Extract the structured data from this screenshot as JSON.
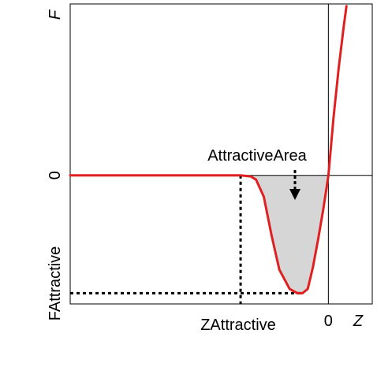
{
  "chart_data": {
    "type": "line",
    "title": "",
    "xlabel": "Z",
    "ylabel": "F",
    "x_ticks": [
      {
        "value": 0,
        "label": "0"
      }
    ],
    "y_ticks": [
      {
        "value": 0,
        "label": "0"
      }
    ],
    "xlim": [
      -1.0,
      0.17
    ],
    "ylim": [
      -0.6,
      0.8
    ],
    "grid": false,
    "reference_lines": {
      "x": 0,
      "y": 0
    },
    "series": [
      {
        "color": "#e02020",
        "x": [
          -1.0,
          -0.8,
          -0.6,
          -0.45,
          -0.34,
          -0.3,
          -0.28,
          -0.25,
          -0.22,
          -0.19,
          -0.15,
          -0.12,
          -0.1,
          -0.08,
          -0.06,
          -0.04,
          -0.02,
          0.0,
          0.02,
          0.04,
          0.06,
          0.07
        ],
        "y": [
          0.0,
          0.0,
          0.0,
          0.0,
          0.0,
          -0.005,
          -0.02,
          -0.1,
          -0.28,
          -0.44,
          -0.53,
          -0.55,
          -0.55,
          -0.53,
          -0.43,
          -0.3,
          -0.16,
          0.0,
          0.27,
          0.5,
          0.7,
          0.79
        ]
      }
    ],
    "attractive_point": {
      "z": -0.34,
      "f": -0.55
    },
    "annotations": {
      "area_label": "AttractiveArea",
      "z_attractive_label": "ZAttractive",
      "f_attractive_label": "FAttractive"
    },
    "colors": {
      "curve": "#e02020",
      "area_fill": "#d6d6d6",
      "axes": "#000000"
    }
  }
}
